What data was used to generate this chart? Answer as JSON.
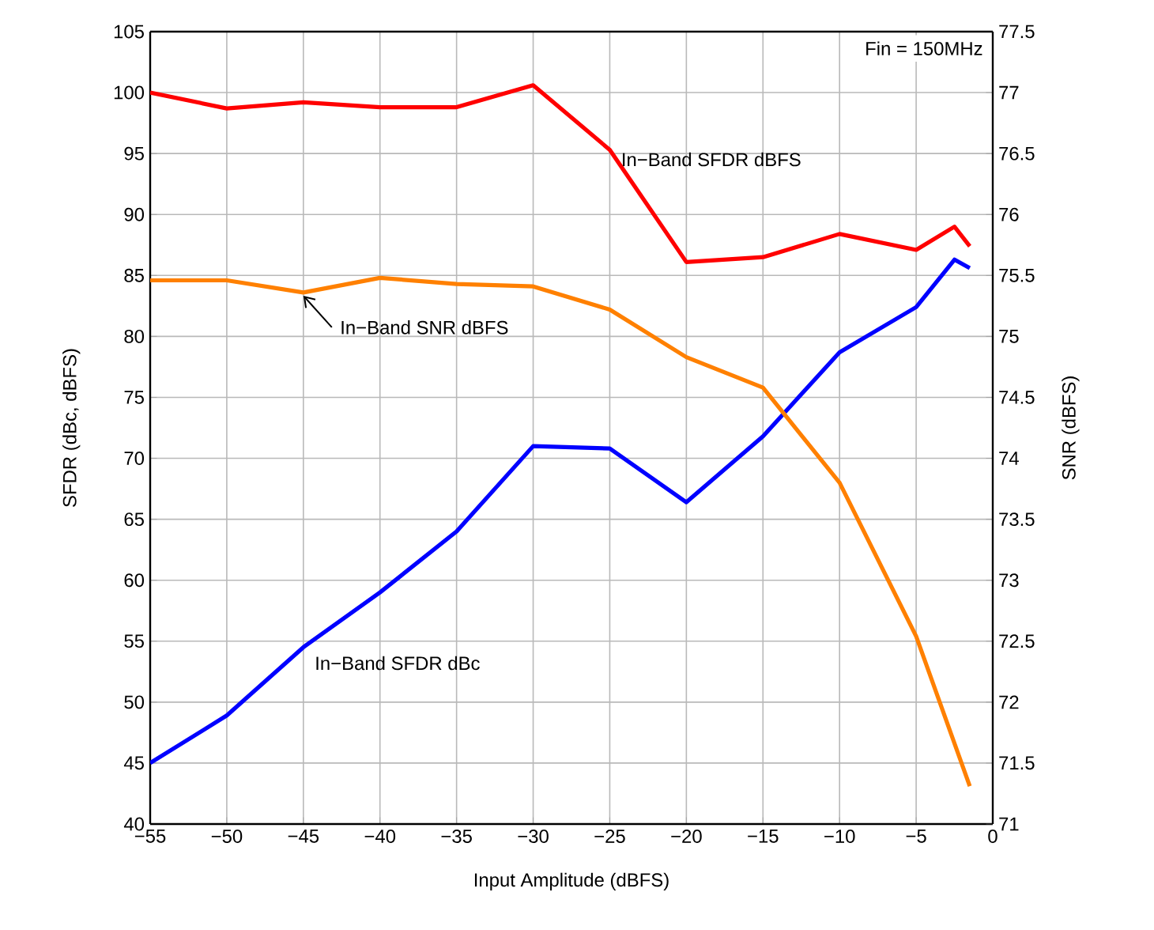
{
  "chart_data": {
    "type": "line",
    "xlabel": "Input Amplitude (dBFS)",
    "ylabel": "SFDR (dBc, dBFS)",
    "y2label": "SNR (dBFS)",
    "annotations": [
      "Fin = 150MHz"
    ],
    "xlim": [
      -55,
      0
    ],
    "ylim": [
      40,
      105
    ],
    "y2lim": [
      71,
      77.5
    ],
    "xticks": [
      {
        "value": -55,
        "label": "−55"
      },
      {
        "value": -50,
        "label": "−50"
      },
      {
        "value": -45,
        "label": "−45"
      },
      {
        "value": -40,
        "label": "−40"
      },
      {
        "value": -35,
        "label": "−35"
      },
      {
        "value": -30,
        "label": "−30"
      },
      {
        "value": -25,
        "label": "−25"
      },
      {
        "value": -20,
        "label": "−20"
      },
      {
        "value": -15,
        "label": "−15"
      },
      {
        "value": -10,
        "label": "−10"
      },
      {
        "value": -5,
        "label": "−5"
      },
      0
    ],
    "yticks": [
      40,
      45,
      50,
      55,
      60,
      65,
      70,
      75,
      80,
      85,
      90,
      95,
      100,
      105
    ],
    "y2ticks": [
      71,
      71.5,
      72,
      72.5,
      73,
      73.5,
      74,
      74.5,
      75,
      75.5,
      76,
      76.5,
      77,
      77.5
    ],
    "grid": true,
    "line_style": "solid",
    "series": [
      {
        "name": "In−Band SFDR dBFS",
        "color": "#ff0000",
        "x": [
          -55,
          -50,
          -45,
          -40,
          -35,
          -30,
          -25,
          -20,
          -15,
          -10,
          -5,
          -2.5,
          -1.5
        ],
        "values": [
          100,
          98.7,
          99.2,
          98.8,
          98.8,
          100.6,
          95.3,
          86.1,
          86.5,
          88.4,
          87.1,
          89,
          87.4
        ]
      },
      {
        "name": "In−Band SNR dBFS",
        "color": "#ff8000",
        "axis": "y2",
        "x": [
          -55,
          -50,
          -45,
          -40,
          -35,
          -30,
          -25,
          -20,
          -15,
          -10,
          -5,
          -1.5
        ],
        "values": [
          75.46,
          75.46,
          75.36,
          75.48,
          75.43,
          75.41,
          75.22,
          74.83,
          74.58,
          73.8,
          72.54,
          71.31
        ]
      },
      {
        "name": "In−Band SFDR dBc",
        "color": "#0000ff",
        "x": [
          -55,
          -50,
          -45,
          -40,
          -35,
          -30,
          -25,
          -20,
          -15,
          -10,
          -5,
          -2.5,
          -1.5
        ],
        "values": [
          45,
          48.9,
          54.5,
          59,
          64,
          71,
          70.8,
          66.4,
          71.8,
          78.7,
          82.4,
          86.3,
          85.6
        ]
      }
    ]
  }
}
